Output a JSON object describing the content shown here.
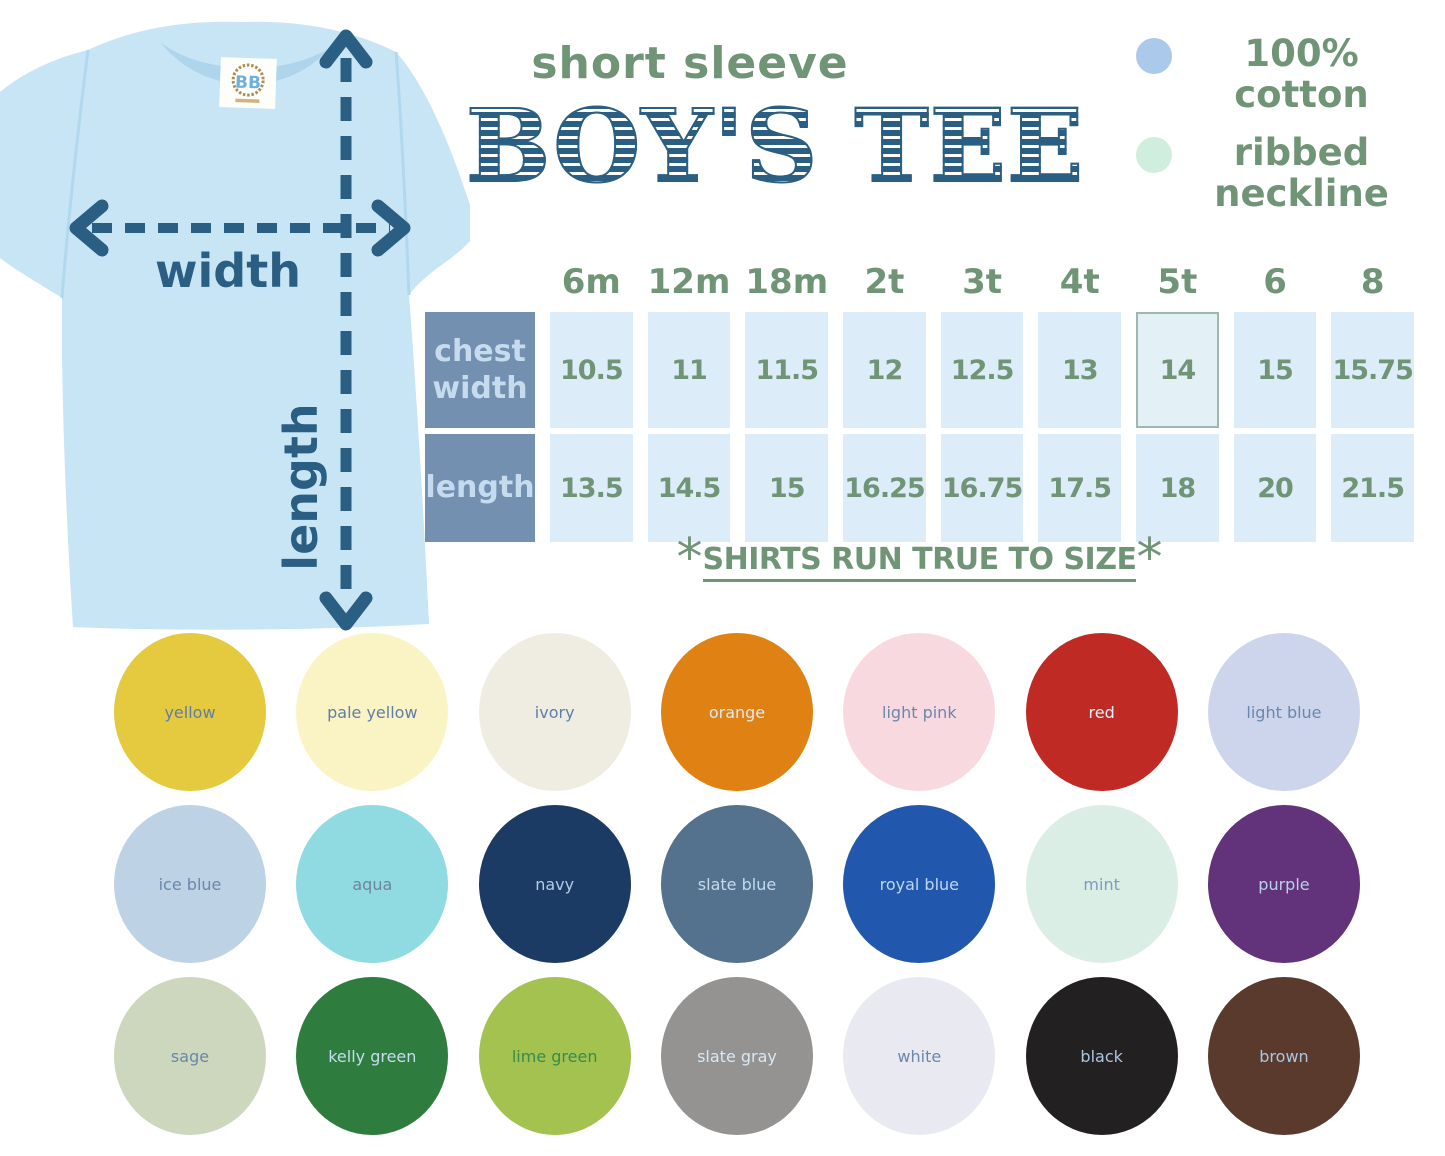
{
  "theme": {
    "navy": "#2a5e82",
    "green": "#6f9476",
    "head-bg": "#7390b0",
    "head-text": "#c6dbee",
    "cell-bg": "#ddecf9",
    "shirt": "#c8e5f6",
    "collar": "#aed5ec"
  },
  "title": {
    "eyebrow": "short sleeve",
    "main": "BOY'S TEE"
  },
  "legend": {
    "items": [
      {
        "label": "100% cotton",
        "swatch": "#abc9ea"
      },
      {
        "label": "ribbed neckline",
        "swatch": "#cfeede"
      }
    ]
  },
  "diagram": {
    "width_label": "width",
    "length_label": "length",
    "tag_brand": "BB"
  },
  "size_chart": {
    "sizes": [
      "6m",
      "12m",
      "18m",
      "2t",
      "3t",
      "4t",
      "5t",
      "6",
      "8"
    ],
    "rows": [
      {
        "label": "chest width",
        "values": [
          "10.5",
          "11",
          "11.5",
          "12",
          "12.5",
          "13",
          "14",
          "15",
          "15.75"
        ]
      },
      {
        "label": "length",
        "values": [
          "13.5",
          "14.5",
          "15",
          "16.25",
          "16.75",
          "17.5",
          "18",
          "20",
          "21.5"
        ]
      }
    ],
    "highlighted": {
      "row": 0,
      "col": 6
    },
    "note": {
      "prefix": "*",
      "text": "SHIRTS RUN TRUE TO SIZE",
      "suffix": "*"
    }
  },
  "swatches": [
    {
      "name": "yellow",
      "bg": "#e5c93e",
      "text": "#5f7ea8"
    },
    {
      "name": "pale yellow",
      "bg": "#faf3c4",
      "text": "#5f7ea8"
    },
    {
      "name": "ivory",
      "bg": "#efece2",
      "text": "#5f7ea8"
    },
    {
      "name": "orange",
      "bg": "#e08114",
      "text": "#ddeaf6"
    },
    {
      "name": "light pink",
      "bg": "#f8d9e0",
      "text": "#6a87ab"
    },
    {
      "name": "red",
      "bg": "#bf2b24",
      "text": "#e8f1fa"
    },
    {
      "name": "light blue",
      "bg": "#cdd5ed",
      "text": "#6a87ab"
    },
    {
      "name": "ice blue",
      "bg": "#bdd3e5",
      "text": "#6a87ab"
    },
    {
      "name": "aqua",
      "bg": "#90dbe2",
      "text": "#71849c"
    },
    {
      "name": "navy",
      "bg": "#1c3b64",
      "text": "#b4cce5"
    },
    {
      "name": "slate blue",
      "bg": "#54718e",
      "text": "#c4daee"
    },
    {
      "name": "royal blue",
      "bg": "#2157ac",
      "text": "#bdd7f0"
    },
    {
      "name": "mint",
      "bg": "#daeee5",
      "text": "#7e9bbd"
    },
    {
      "name": "purple",
      "bg": "#62327a",
      "text": "#b9d2ea"
    },
    {
      "name": "sage",
      "bg": "#ccd7be",
      "text": "#6a87ab"
    },
    {
      "name": "kelly green",
      "bg": "#2e7d3e",
      "text": "#c5ddf1"
    },
    {
      "name": "lime green",
      "bg": "#a3c24f",
      "text": "#3a8a4a"
    },
    {
      "name": "slate gray",
      "bg": "#949392",
      "text": "#d8e8f4"
    },
    {
      "name": "white",
      "bg": "#e9eaf1",
      "text": "#6a87ab"
    },
    {
      "name": "black",
      "bg": "#232021",
      "text": "#a9c6e3"
    },
    {
      "name": "brown",
      "bg": "#5a3a2d",
      "text": "#a9c6e3"
    }
  ]
}
